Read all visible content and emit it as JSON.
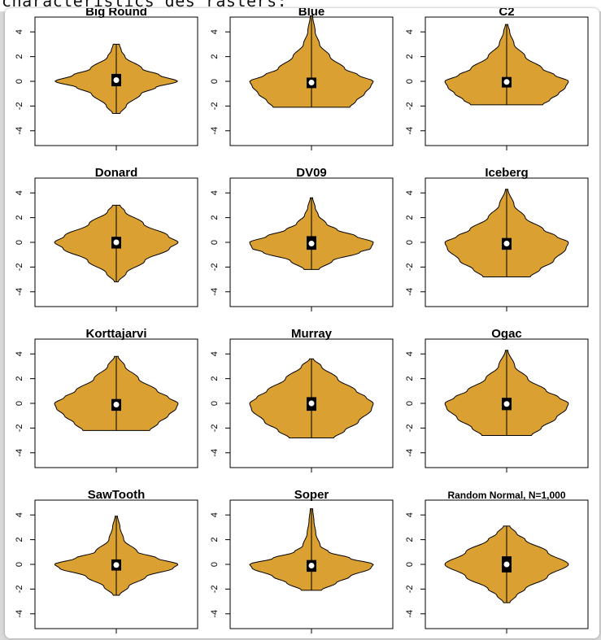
{
  "caption": "characteristics des rasters:",
  "chart_data": [
    {
      "type": "violin",
      "title": "Big Round",
      "yticks": [
        -4,
        -2,
        0,
        2,
        4
      ],
      "ylim": [
        -5.2,
        5.2
      ],
      "min": -2.6,
      "max": 3.0,
      "q1": -0.4,
      "median": 0.1,
      "q3": 0.6,
      "color": "#daa032",
      "density": [
        [
          -2.6,
          0.06
        ],
        [
          -2.0,
          0.16
        ],
        [
          -1.0,
          0.4
        ],
        [
          -0.5,
          0.64
        ],
        [
          0,
          0.99
        ],
        [
          0.5,
          0.7
        ],
        [
          1.0,
          0.42
        ],
        [
          2.0,
          0.14
        ],
        [
          2.5,
          0.08
        ],
        [
          3.0,
          0.05
        ]
      ]
    },
    {
      "type": "violin",
      "title": "Blue",
      "yticks": [
        -4,
        -2,
        0,
        2,
        4
      ],
      "ylim": [
        -5.2,
        5.2
      ],
      "min": -2.1,
      "max": 5.3,
      "q1": -0.55,
      "median": -0.1,
      "q3": 0.3,
      "color": "#daa032",
      "density": [
        [
          -2.1,
          0.62
        ],
        [
          -1.6,
          0.72
        ],
        [
          -1.0,
          0.86
        ],
        [
          -0.4,
          0.96
        ],
        [
          0,
          1.0
        ],
        [
          0.5,
          0.76
        ],
        [
          1.0,
          0.54
        ],
        [
          2.0,
          0.3
        ],
        [
          3.0,
          0.13
        ],
        [
          4.0,
          0.06
        ],
        [
          5.3,
          0.02
        ]
      ]
    },
    {
      "type": "violin",
      "title": "C2",
      "yticks": [
        -4,
        -2,
        0,
        2,
        4
      ],
      "ylim": [
        -5.2,
        5.2
      ],
      "min": -1.9,
      "max": 4.6,
      "q1": -0.5,
      "median": -0.05,
      "q3": 0.35,
      "color": "#daa032",
      "density": [
        [
          -1.9,
          0.58
        ],
        [
          -1.5,
          0.7
        ],
        [
          -1.0,
          0.84
        ],
        [
          -0.5,
          0.95
        ],
        [
          0,
          1.0
        ],
        [
          0.5,
          0.78
        ],
        [
          1.0,
          0.58
        ],
        [
          2.0,
          0.3
        ],
        [
          3.0,
          0.12
        ],
        [
          4.0,
          0.05
        ],
        [
          4.6,
          0.02
        ]
      ]
    },
    {
      "type": "violin",
      "title": "Donard",
      "yticks": [
        -4,
        -2,
        0,
        2,
        4
      ],
      "ylim": [
        -5.2,
        5.2
      ],
      "min": -3.2,
      "max": 3.0,
      "q1": -0.5,
      "median": 0.0,
      "q3": 0.45,
      "color": "#daa032",
      "density": [
        [
          -3.2,
          0.03
        ],
        [
          -2.5,
          0.16
        ],
        [
          -1.5,
          0.46
        ],
        [
          -0.5,
          0.86
        ],
        [
          0,
          1.0
        ],
        [
          0.5,
          0.84
        ],
        [
          1.5,
          0.44
        ],
        [
          2.5,
          0.14
        ],
        [
          3.0,
          0.06
        ]
      ]
    },
    {
      "type": "violin",
      "title": "DV09",
      "yticks": [
        -4,
        -2,
        0,
        2,
        4
      ],
      "ylim": [
        -5.2,
        5.2
      ],
      "min": -2.2,
      "max": 3.6,
      "q1": -0.6,
      "median": -0.1,
      "q3": 0.5,
      "color": "#daa032",
      "density": [
        [
          -2.2,
          0.12
        ],
        [
          -1.5,
          0.34
        ],
        [
          -0.8,
          0.78
        ],
        [
          -0.5,
          0.96
        ],
        [
          0,
          1.0
        ],
        [
          0.5,
          0.72
        ],
        [
          1.0,
          0.42
        ],
        [
          1.5,
          0.24
        ],
        [
          2.2,
          0.11
        ],
        [
          2.8,
          0.06
        ],
        [
          3.6,
          0.02
        ]
      ]
    },
    {
      "type": "violin",
      "title": "Iceberg",
      "yticks": [
        -4,
        -2,
        0,
        2,
        4
      ],
      "ylim": [
        -5.2,
        5.2
      ],
      "min": -2.8,
      "max": 4.3,
      "q1": -0.6,
      "median": -0.1,
      "q3": 0.35,
      "color": "#daa032",
      "density": [
        [
          -2.8,
          0.38
        ],
        [
          -2.2,
          0.54
        ],
        [
          -1.5,
          0.76
        ],
        [
          -0.5,
          0.96
        ],
        [
          0,
          1.0
        ],
        [
          0.5,
          0.8
        ],
        [
          1.0,
          0.6
        ],
        [
          2.0,
          0.3
        ],
        [
          3.0,
          0.12
        ],
        [
          4.3,
          0.02
        ]
      ]
    },
    {
      "type": "violin",
      "title": "Korttajarvi",
      "yticks": [
        -4,
        -2,
        0,
        2,
        4
      ],
      "ylim": [
        -5.2,
        5.2
      ],
      "min": -2.2,
      "max": 3.8,
      "q1": -0.6,
      "median": -0.1,
      "q3": 0.35,
      "color": "#daa032",
      "density": [
        [
          -2.2,
          0.54
        ],
        [
          -1.6,
          0.68
        ],
        [
          -1.0,
          0.84
        ],
        [
          -0.4,
          0.97
        ],
        [
          0,
          1.0
        ],
        [
          0.5,
          0.84
        ],
        [
          1.0,
          0.66
        ],
        [
          2.0,
          0.36
        ],
        [
          3.0,
          0.14
        ],
        [
          3.8,
          0.03
        ]
      ]
    },
    {
      "type": "violin",
      "title": "Murray",
      "yticks": [
        -4,
        -2,
        0,
        2,
        4
      ],
      "ylim": [
        -5.2,
        5.2
      ],
      "min": -2.8,
      "max": 3.6,
      "q1": -0.6,
      "median": 0.0,
      "q3": 0.5,
      "color": "#daa032",
      "density": [
        [
          -2.8,
          0.36
        ],
        [
          -2.2,
          0.54
        ],
        [
          -1.5,
          0.76
        ],
        [
          -0.5,
          0.97
        ],
        [
          0,
          1.0
        ],
        [
          0.5,
          0.88
        ],
        [
          1.0,
          0.72
        ],
        [
          2.0,
          0.42
        ],
        [
          3.0,
          0.16
        ],
        [
          3.6,
          0.03
        ]
      ]
    },
    {
      "type": "violin",
      "title": "Ogac",
      "yticks": [
        -4,
        -2,
        0,
        2,
        4
      ],
      "ylim": [
        -5.2,
        5.2
      ],
      "min": -2.6,
      "max": 4.3,
      "q1": -0.55,
      "median": -0.05,
      "q3": 0.45,
      "color": "#daa032",
      "density": [
        [
          -2.6,
          0.4
        ],
        [
          -2.0,
          0.56
        ],
        [
          -1.2,
          0.8
        ],
        [
          -0.4,
          0.97
        ],
        [
          0,
          1.0
        ],
        [
          0.5,
          0.84
        ],
        [
          1.0,
          0.64
        ],
        [
          2.0,
          0.34
        ],
        [
          3.0,
          0.13
        ],
        [
          4.3,
          0.02
        ]
      ]
    },
    {
      "type": "violin",
      "title": "SawTooth",
      "yticks": [
        -4,
        -2,
        0,
        2,
        4
      ],
      "ylim": [
        -5.2,
        5.2
      ],
      "min": -2.5,
      "max": 3.9,
      "q1": -0.5,
      "median": -0.05,
      "q3": 0.4,
      "color": "#daa032",
      "density": [
        [
          -2.5,
          0.05
        ],
        [
          -1.8,
          0.2
        ],
        [
          -1.0,
          0.48
        ],
        [
          -0.3,
          0.92
        ],
        [
          0,
          1.0
        ],
        [
          0.5,
          0.66
        ],
        [
          1.0,
          0.34
        ],
        [
          2.0,
          0.12
        ],
        [
          3.0,
          0.06
        ],
        [
          3.9,
          0.02
        ]
      ]
    },
    {
      "type": "violin",
      "title": "Soper",
      "yticks": [
        -4,
        -2,
        0,
        2,
        4
      ],
      "ylim": [
        -5.2,
        5.2
      ],
      "min": -2.1,
      "max": 4.5,
      "q1": -0.6,
      "median": -0.1,
      "q3": 0.35,
      "color": "#daa032",
      "density": [
        [
          -2.1,
          0.16
        ],
        [
          -1.5,
          0.4
        ],
        [
          -1.0,
          0.62
        ],
        [
          -0.3,
          0.96
        ],
        [
          0,
          1.0
        ],
        [
          0.5,
          0.62
        ],
        [
          1.0,
          0.28
        ],
        [
          1.5,
          0.14
        ],
        [
          2.5,
          0.07
        ],
        [
          3.5,
          0.04
        ],
        [
          4.5,
          0.02
        ]
      ]
    },
    {
      "type": "violin",
      "title": "Random Normal, N=1,000",
      "yticks": [
        -4,
        -2,
        0,
        2,
        4
      ],
      "ylim": [
        -5.2,
        5.2
      ],
      "min": -3.1,
      "max": 3.1,
      "q1": -0.65,
      "median": 0.0,
      "q3": 0.65,
      "color": "#daa032",
      "density": [
        [
          -3.1,
          0.05
        ],
        [
          -2.5,
          0.16
        ],
        [
          -2.0,
          0.3
        ],
        [
          -1.0,
          0.66
        ],
        [
          0,
          1.0
        ],
        [
          1.0,
          0.66
        ],
        [
          2.0,
          0.3
        ],
        [
          2.5,
          0.16
        ],
        [
          3.1,
          0.05
        ]
      ]
    }
  ]
}
